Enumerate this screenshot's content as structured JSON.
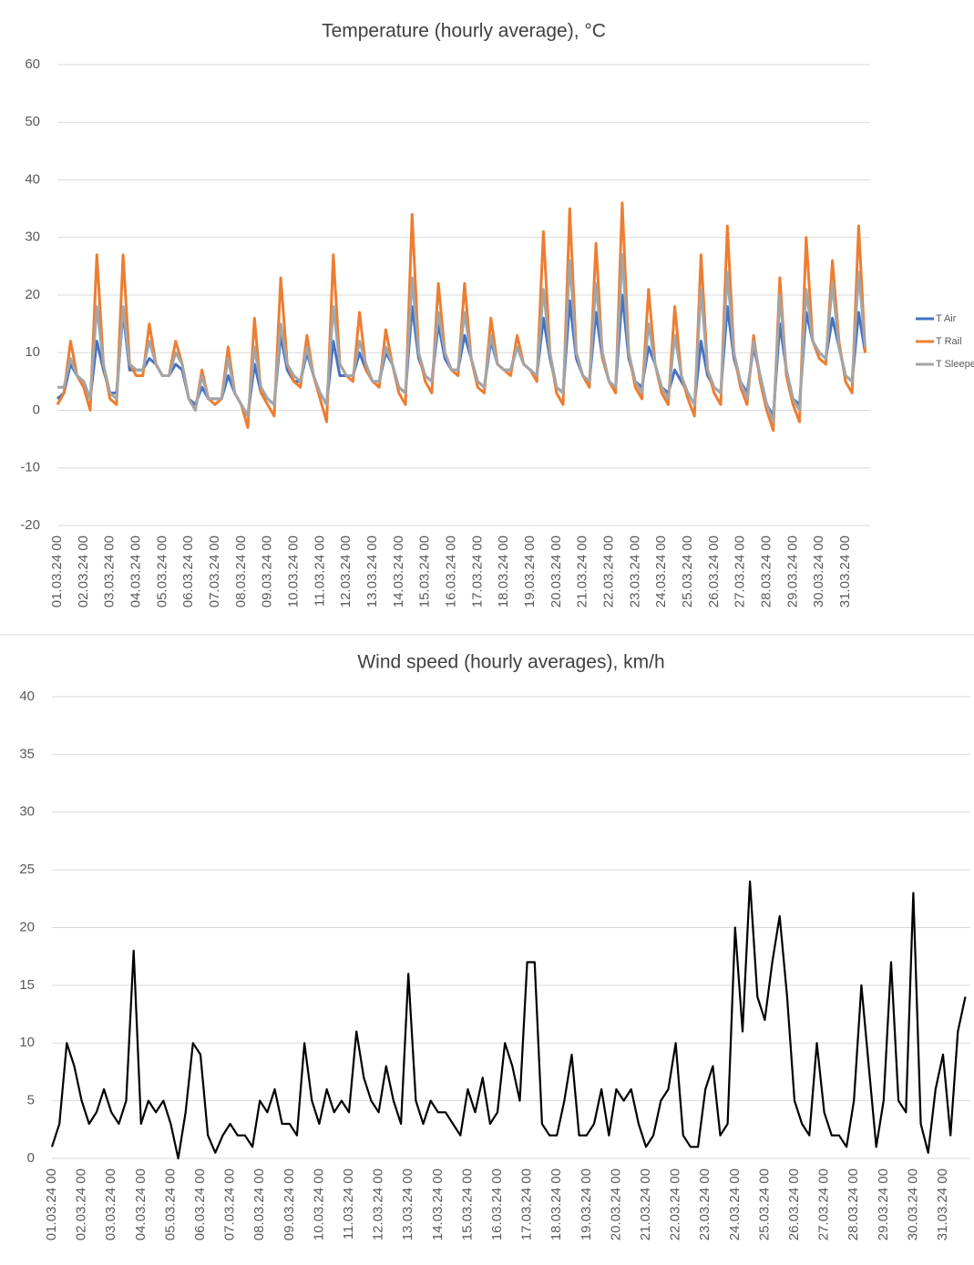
{
  "chart_data": [
    {
      "type": "line",
      "title": "Temperature (hourly average), °C",
      "categories": [
        "01.03.24 00",
        null,
        null,
        null,
        "02.03.24 00",
        null,
        null,
        null,
        "03.03.24 00",
        null,
        null,
        null,
        "04.03.24 00",
        null,
        null,
        null,
        "05.03.24 00",
        null,
        null,
        null,
        "06.03.24 00",
        null,
        null,
        null,
        "07.03.24 00",
        null,
        null,
        null,
        "08.03.24 00",
        null,
        null,
        null,
        "09.03.24 00",
        null,
        null,
        null,
        "10.03.24 00",
        null,
        null,
        null,
        "11.03.24 00",
        null,
        null,
        null,
        "12.03.24 00",
        null,
        null,
        null,
        "13.03.24 00",
        null,
        null,
        null,
        "14.03.24 00",
        null,
        null,
        null,
        "15.03.24 00",
        null,
        null,
        null,
        "16.03.24 00",
        null,
        null,
        null,
        "17.03.24 00",
        null,
        null,
        null,
        "18.03.24 00",
        null,
        null,
        null,
        "19.03.24 00",
        null,
        null,
        null,
        "20.03.24 00",
        null,
        null,
        null,
        "21.03.24 00",
        null,
        null,
        null,
        "22.03.24 00",
        null,
        null,
        null,
        "23.03.24 00",
        null,
        null,
        null,
        "24.03.24 00",
        null,
        null,
        null,
        "25.03.24 00",
        null,
        null,
        null,
        "26.03.24 00",
        null,
        null,
        null,
        "27.03.24 00",
        null,
        null,
        null,
        "28.03.24 00",
        null,
        null,
        null,
        "29.03.24 00",
        null,
        null,
        null,
        "30.03.24 00",
        null,
        null,
        null,
        "31.03.24 00",
        null,
        null,
        null
      ],
      "series": [
        {
          "name": "T Air",
          "color": "#4472c4",
          "values": [
            2,
            3,
            8,
            6,
            5,
            2,
            12,
            7,
            3,
            3,
            17,
            7,
            7,
            7,
            9,
            8,
            6,
            6,
            8,
            7,
            2,
            1,
            4,
            2,
            2,
            2,
            6,
            3,
            1,
            -1,
            8,
            3,
            2,
            1,
            13,
            7,
            5,
            5,
            10,
            6,
            3,
            1,
            12,
            6,
            6,
            6,
            10,
            7,
            5,
            5,
            10,
            8,
            4,
            3,
            18,
            9,
            6,
            5,
            15,
            9,
            7,
            7,
            13,
            9,
            5,
            4,
            12,
            8,
            7,
            7,
            11,
            8,
            7,
            6,
            16,
            9,
            4,
            3,
            19,
            9,
            6,
            5,
            17,
            9,
            5,
            4,
            20,
            9,
            5,
            4,
            11,
            8,
            4,
            3,
            7,
            5,
            3,
            1,
            12,
            6,
            4,
            3,
            18,
            9,
            5,
            3,
            11,
            6,
            1,
            -1,
            15,
            7,
            2,
            1,
            17,
            12,
            10,
            9,
            16,
            11,
            6,
            5,
            17,
            10
          ]
        },
        {
          "name": "T Rail",
          "color": "#ed7d31",
          "values": [
            1,
            3,
            12,
            6,
            4,
            0,
            27,
            8,
            2,
            1,
            27,
            8,
            6,
            6,
            15,
            8,
            6,
            6,
            12,
            8,
            2,
            0,
            7,
            2,
            1,
            2,
            11,
            3,
            1,
            -3,
            16,
            3,
            1,
            -1,
            23,
            8,
            5,
            4,
            13,
            6,
            2,
            -2,
            27,
            8,
            6,
            5,
            17,
            7,
            5,
            4,
            14,
            8,
            3,
            1,
            34,
            10,
            5,
            3,
            22,
            10,
            7,
            6,
            22,
            9,
            4,
            3,
            16,
            8,
            7,
            6,
            13,
            8,
            7,
            5,
            31,
            10,
            3,
            1,
            35,
            10,
            6,
            4,
            29,
            9,
            5,
            3,
            36,
            10,
            4,
            2,
            21,
            8,
            3,
            1,
            18,
            6,
            2,
            -1,
            27,
            7,
            3,
            1,
            32,
            10,
            4,
            1,
            13,
            5,
            0,
            -3.5,
            23,
            6,
            1,
            -2,
            30,
            12,
            9,
            8,
            26,
            12,
            5,
            3,
            32,
            10
          ]
        },
        {
          "name": "T Sleeper",
          "color": "#a5a5a5",
          "values": [
            4,
            4,
            9,
            6,
            5,
            2,
            18,
            8,
            3,
            2,
            18,
            8,
            7,
            7,
            12,
            8,
            6,
            6,
            10,
            8,
            2,
            0,
            6,
            2,
            2,
            2,
            9,
            3,
            1,
            -1,
            11,
            4,
            2,
            1,
            15,
            8,
            6,
            5,
            11,
            6,
            3,
            1,
            18,
            8,
            6,
            6,
            12,
            8,
            5,
            5,
            11,
            8,
            4,
            3,
            23,
            10,
            6,
            5,
            17,
            10,
            7,
            7,
            17,
            9,
            5,
            4,
            13,
            8,
            7,
            7,
            11,
            8,
            7,
            6,
            21,
            10,
            4,
            3,
            26,
            10,
            6,
            5,
            22,
            10,
            5,
            4,
            27,
            10,
            5,
            3,
            15,
            8,
            4,
            2,
            13,
            6,
            3,
            1,
            21,
            7,
            4,
            3,
            24,
            10,
            5,
            2,
            12,
            6,
            1,
            -2,
            20,
            7,
            2,
            0,
            21,
            12,
            10,
            9,
            22,
            11,
            6,
            5,
            24,
            11
          ]
        }
      ],
      "ylim": [
        -20,
        60
      ],
      "yticks": [
        -20,
        -10,
        0,
        10,
        20,
        30,
        40,
        50,
        60
      ],
      "grid": true,
      "legend": "right"
    },
    {
      "type": "line",
      "title": "Wind speed (hourly averages), km/h",
      "categories": [
        "01.03.24 00",
        null,
        null,
        null,
        "02.03.24 00",
        null,
        null,
        null,
        "03.03.24 00",
        null,
        null,
        null,
        "04.03.24 00",
        null,
        null,
        null,
        "05.03.24 00",
        null,
        null,
        null,
        "06.03.24 00",
        null,
        null,
        null,
        "07.03.24 00",
        null,
        null,
        null,
        "08.03.24 00",
        null,
        null,
        null,
        "09.03.24 00",
        null,
        null,
        null,
        "10.03.24 00",
        null,
        null,
        null,
        "11.03.24 00",
        null,
        null,
        null,
        "12.03.24 00",
        null,
        null,
        null,
        "13.03.24 00",
        null,
        null,
        null,
        "14.03.24 00",
        null,
        null,
        null,
        "15.03.24 00",
        null,
        null,
        null,
        "16.03.24 00",
        null,
        null,
        null,
        "17.03.24 00",
        null,
        null,
        null,
        "18.03.24 00",
        null,
        null,
        null,
        "19.03.24 00",
        null,
        null,
        null,
        "20.03.24 00",
        null,
        null,
        null,
        "21.03.24 00",
        null,
        null,
        null,
        "22.03.24 00",
        null,
        null,
        null,
        "23.03.24 00",
        null,
        null,
        null,
        "24.03.24 00",
        null,
        null,
        null,
        "25.03.24 00",
        null,
        null,
        null,
        "26.03.24 00",
        null,
        null,
        null,
        "27.03.24 00",
        null,
        null,
        null,
        "28.03.24 00",
        null,
        null,
        null,
        "29.03.24 00",
        null,
        null,
        null,
        "30.03.24 00",
        null,
        null,
        null,
        "31.03.24 00",
        null,
        null,
        null
      ],
      "color": "#000000",
      "values": [
        1,
        3,
        10,
        8,
        5,
        3,
        4,
        6,
        4,
        3,
        5,
        18,
        3,
        5,
        4,
        5,
        3,
        0,
        4,
        10,
        9,
        2,
        0.5,
        2,
        3,
        2,
        2,
        1,
        5,
        4,
        6,
        3,
        3,
        2,
        10,
        5,
        3,
        6,
        4,
        5,
        4,
        11,
        7,
        5,
        4,
        8,
        5,
        3,
        16,
        5,
        3,
        5,
        4,
        4,
        3,
        2,
        6,
        4,
        7,
        3,
        4,
        10,
        8,
        5,
        17,
        17,
        3,
        2,
        2,
        5,
        9,
        2,
        2,
        3,
        6,
        2,
        6,
        5,
        6,
        3,
        1,
        2,
        5,
        6,
        10,
        2,
        1,
        1,
        6,
        8,
        2,
        3,
        20,
        11,
        24,
        14,
        12,
        17,
        21,
        14,
        5,
        3,
        2,
        10,
        4,
        2,
        2,
        1,
        5,
        15,
        8,
        1,
        5,
        17,
        5,
        4,
        23,
        3,
        0.5,
        6,
        9,
        2,
        11,
        14
      ],
      "ylim": [
        0,
        40
      ],
      "yticks": [
        0,
        5,
        10,
        15,
        20,
        25,
        30,
        35,
        40
      ],
      "grid": true
    }
  ]
}
